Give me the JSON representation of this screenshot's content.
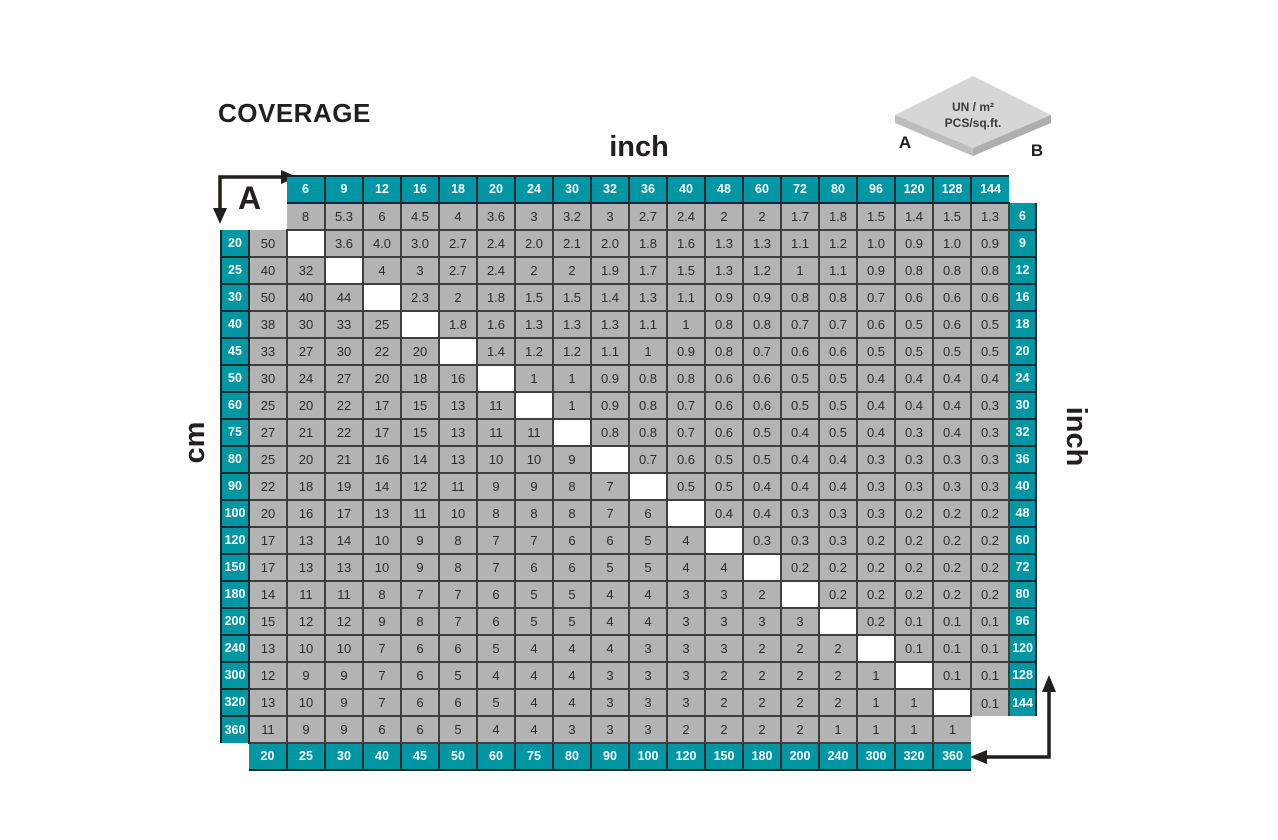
{
  "title": "COVERAGE",
  "axis": {
    "top": "inch",
    "bottom": "cm",
    "left": "cm",
    "right": "inch"
  },
  "corner_a_label": "A",
  "corner_b_label": "B",
  "legend_tile": {
    "line1": "UN / m²",
    "line2": "PCS/sq.ft.",
    "a": "A",
    "b": "B"
  },
  "colors": {
    "teal": "#0096a4",
    "cell_gray": "#b3b3b3",
    "border_dark": "#3f3f3f",
    "tile_top": "#d6d6d6",
    "tile_side_left": "#bdbdbd",
    "tile_side_right": "#aeaeae"
  },
  "chart_data": {
    "type": "table",
    "title": "COVERAGE",
    "description": "Tile coverage lookup: upper-right triangle = PCS/sq.ft. for inch sizes (top and right headers); lower-left triangle = UN/m² for cm sizes (left and bottom headers). Empty string = white diagonal cell, null = no cell.",
    "top_headers_inch": [
      "6",
      "9",
      "12",
      "16",
      "18",
      "20",
      "24",
      "30",
      "32",
      "36",
      "40",
      "48",
      "60",
      "72",
      "80",
      "96",
      "120",
      "128",
      "144"
    ],
    "right_headers_inch": [
      "6",
      "9",
      "12",
      "16",
      "18",
      "20",
      "24",
      "30",
      "32",
      "36",
      "40",
      "48",
      "60",
      "72",
      "80",
      "96",
      "120",
      "128",
      "144"
    ],
    "left_headers_cm": [
      "20",
      "25",
      "30",
      "40",
      "45",
      "50",
      "60",
      "75",
      "80",
      "90",
      "100",
      "120",
      "150",
      "180",
      "200",
      "240",
      "300",
      "320",
      "360"
    ],
    "bottom_headers_cm": [
      "20",
      "25",
      "30",
      "40",
      "45",
      "50",
      "60",
      "75",
      "80",
      "90",
      "100",
      "120",
      "150",
      "180",
      "200",
      "240",
      "300",
      "320",
      "360"
    ],
    "rows": [
      {
        "left": null,
        "right": "6",
        "cells": [
          null,
          "8",
          "5.3",
          "6",
          "4.5",
          "4",
          "3.6",
          "3",
          "3.2",
          "3",
          "2.7",
          "2.4",
          "2",
          "2",
          "1.7",
          "1.8",
          "1.5",
          "1.4",
          "1.5",
          "1.3"
        ]
      },
      {
        "left": "20",
        "right": "9",
        "cells": [
          "50",
          "",
          "3.6",
          "4.0",
          "3.0",
          "2.7",
          "2.4",
          "2.0",
          "2.1",
          "2.0",
          "1.8",
          "1.6",
          "1.3",
          "1.3",
          "1.1",
          "1.2",
          "1.0",
          "0.9",
          "1.0",
          "0.9"
        ]
      },
      {
        "left": "25",
        "right": "12",
        "cells": [
          "40",
          "32",
          "",
          "4",
          "3",
          "2.7",
          "2.4",
          "2",
          "2",
          "1.9",
          "1.7",
          "1.5",
          "1.3",
          "1.2",
          "1",
          "1.1",
          "0.9",
          "0.8",
          "0.8",
          "0.8"
        ]
      },
      {
        "left": "30",
        "right": "16",
        "cells": [
          "50",
          "40",
          "44",
          "",
          "2.3",
          "2",
          "1.8",
          "1.5",
          "1.5",
          "1.4",
          "1.3",
          "1.1",
          "0.9",
          "0.9",
          "0.8",
          "0.8",
          "0.7",
          "0.6",
          "0.6",
          "0.6"
        ]
      },
      {
        "left": "40",
        "right": "18",
        "cells": [
          "38",
          "30",
          "33",
          "25",
          "",
          "1.8",
          "1.6",
          "1.3",
          "1.3",
          "1.3",
          "1.1",
          "1",
          "0.8",
          "0.8",
          "0.7",
          "0.7",
          "0.6",
          "0.5",
          "0.6",
          "0.5"
        ]
      },
      {
        "left": "45",
        "right": "20",
        "cells": [
          "33",
          "27",
          "30",
          "22",
          "20",
          "",
          "1.4",
          "1.2",
          "1.2",
          "1.1",
          "1",
          "0.9",
          "0.8",
          "0.7",
          "0.6",
          "0.6",
          "0.5",
          "0.5",
          "0.5",
          "0.5"
        ]
      },
      {
        "left": "50",
        "right": "24",
        "cells": [
          "30",
          "24",
          "27",
          "20",
          "18",
          "16",
          "",
          "1",
          "1",
          "0.9",
          "0.8",
          "0.8",
          "0.6",
          "0.6",
          "0.5",
          "0.5",
          "0.4",
          "0.4",
          "0.4",
          "0.4"
        ]
      },
      {
        "left": "60",
        "right": "30",
        "cells": [
          "25",
          "20",
          "22",
          "17",
          "15",
          "13",
          "11",
          "",
          "1",
          "0.9",
          "0.8",
          "0.7",
          "0.6",
          "0.6",
          "0.5",
          "0.5",
          "0.4",
          "0.4",
          "0.4",
          "0.3"
        ]
      },
      {
        "left": "75",
        "right": "32",
        "cells": [
          "27",
          "21",
          "22",
          "17",
          "15",
          "13",
          "11",
          "11",
          "",
          "0.8",
          "0.8",
          "0.7",
          "0.6",
          "0.5",
          "0.4",
          "0.5",
          "0.4",
          "0.3",
          "0.4",
          "0.3"
        ]
      },
      {
        "left": "80",
        "right": "36",
        "cells": [
          "25",
          "20",
          "21",
          "16",
          "14",
          "13",
          "10",
          "10",
          "9",
          "",
          "0.7",
          "0.6",
          "0.5",
          "0.5",
          "0.4",
          "0.4",
          "0.3",
          "0.3",
          "0.3",
          "0.3"
        ]
      },
      {
        "left": "90",
        "right": "40",
        "cells": [
          "22",
          "18",
          "19",
          "14",
          "12",
          "11",
          "9",
          "9",
          "8",
          "7",
          "",
          "0.5",
          "0.5",
          "0.4",
          "0.4",
          "0.4",
          "0.3",
          "0.3",
          "0.3",
          "0.3"
        ]
      },
      {
        "left": "100",
        "right": "48",
        "cells": [
          "20",
          "16",
          "17",
          "13",
          "11",
          "10",
          "8",
          "8",
          "8",
          "7",
          "6",
          "",
          "0.4",
          "0.4",
          "0.3",
          "0.3",
          "0.3",
          "0.2",
          "0.2",
          "0.2"
        ]
      },
      {
        "left": "120",
        "right": "60",
        "cells": [
          "17",
          "13",
          "14",
          "10",
          "9",
          "8",
          "7",
          "7",
          "6",
          "6",
          "5",
          "4",
          "",
          "0.3",
          "0.3",
          "0.3",
          "0.2",
          "0.2",
          "0.2",
          "0.2"
        ]
      },
      {
        "left": "150",
        "right": "72",
        "cells": [
          "17",
          "13",
          "13",
          "10",
          "9",
          "8",
          "7",
          "6",
          "6",
          "5",
          "5",
          "4",
          "4",
          "",
          "0.2",
          "0.2",
          "0.2",
          "0.2",
          "0.2",
          "0.2"
        ]
      },
      {
        "left": "180",
        "right": "80",
        "cells": [
          "14",
          "11",
          "11",
          "8",
          "7",
          "7",
          "6",
          "5",
          "5",
          "4",
          "4",
          "3",
          "3",
          "2",
          "",
          "0.2",
          "0.2",
          "0.2",
          "0.2",
          "0.2"
        ]
      },
      {
        "left": "200",
        "right": "96",
        "cells": [
          "15",
          "12",
          "12",
          "9",
          "8",
          "7",
          "6",
          "5",
          "5",
          "4",
          "4",
          "3",
          "3",
          "3",
          "3",
          "",
          "0.2",
          "0.1",
          "0.1",
          "0.1"
        ]
      },
      {
        "left": "240",
        "right": "120",
        "cells": [
          "13",
          "10",
          "10",
          "7",
          "6",
          "6",
          "5",
          "4",
          "4",
          "4",
          "3",
          "3",
          "3",
          "2",
          "2",
          "2",
          "",
          "0.1",
          "0.1",
          "0.1"
        ]
      },
      {
        "left": "300",
        "right": "128",
        "cells": [
          "12",
          "9",
          "9",
          "7",
          "6",
          "5",
          "4",
          "4",
          "4",
          "3",
          "3",
          "3",
          "2",
          "2",
          "2",
          "2",
          "1",
          "",
          "0.1",
          "0.1"
        ]
      },
      {
        "left": "320",
        "right": "144",
        "cells": [
          "13",
          "10",
          "9",
          "7",
          "6",
          "6",
          "5",
          "4",
          "4",
          "3",
          "3",
          "3",
          "2",
          "2",
          "2",
          "2",
          "1",
          "1",
          "",
          "0.1"
        ]
      },
      {
        "left": "360",
        "right": null,
        "cells": [
          "11",
          "9",
          "9",
          "6",
          "6",
          "5",
          "4",
          "4",
          "3",
          "3",
          "3",
          "2",
          "2",
          "2",
          "2",
          "1",
          "1",
          "1",
          "1",
          null
        ]
      }
    ]
  }
}
